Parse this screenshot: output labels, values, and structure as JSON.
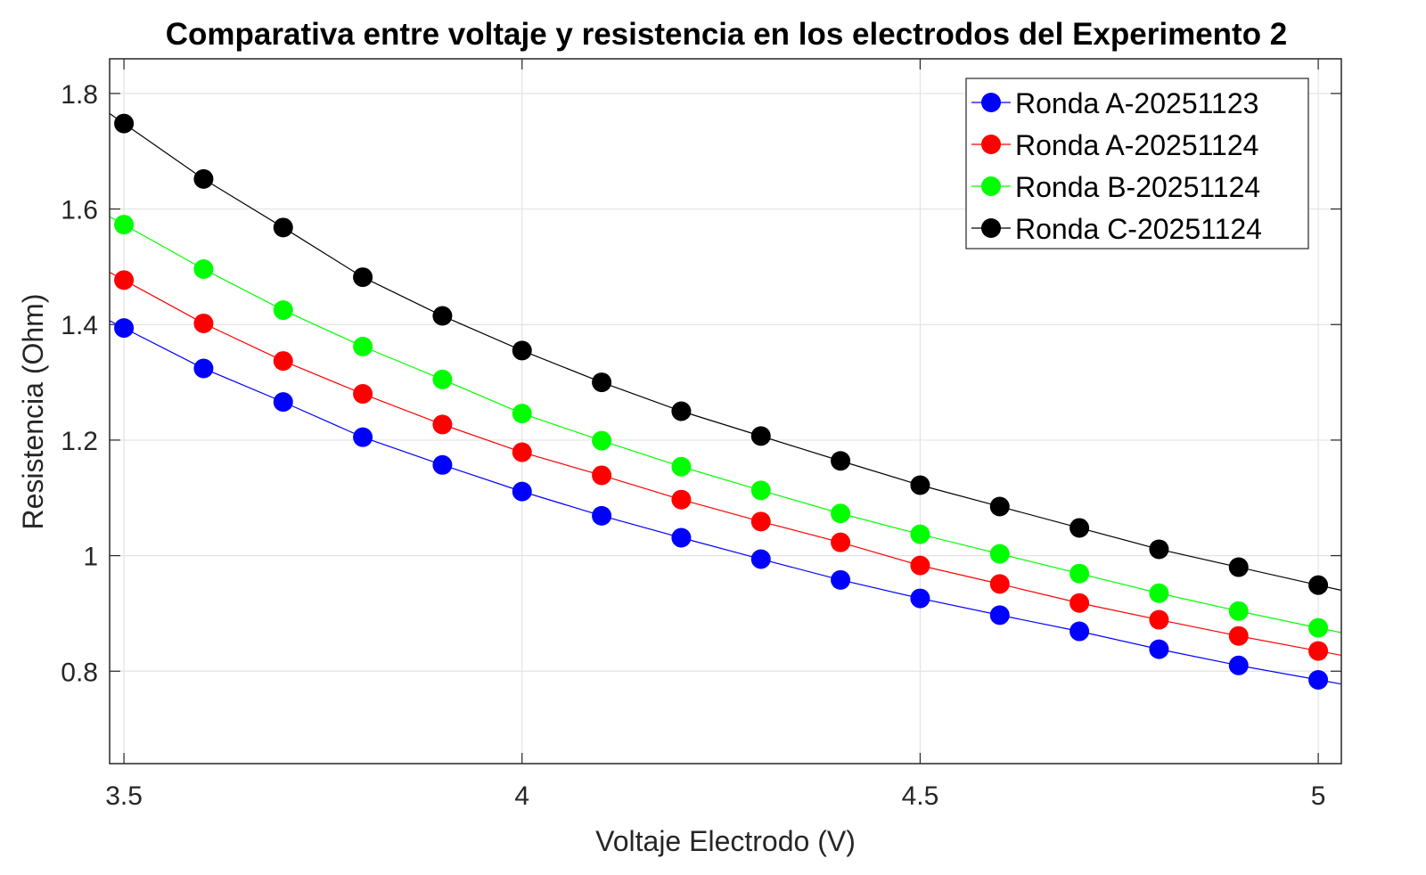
{
  "chart_data": {
    "type": "line",
    "title": "Comparativa entre voltaje y resistencia en los electrodos del Experimento 2",
    "xlabel": "Voltaje Electrodo (V)",
    "ylabel": "Resistencia (Ohm)",
    "xlim": [
      3.482,
      5.029
    ],
    "ylim": [
      0.64,
      1.86
    ],
    "xticks": [
      3.5,
      4,
      4.5,
      5
    ],
    "xtick_labels": [
      "3.5",
      "4",
      "4.5",
      "5"
    ],
    "yticks": [
      0.8,
      1.0,
      1.2,
      1.4,
      1.6,
      1.8
    ],
    "ytick_labels": [
      "0.8",
      "1",
      "1.2",
      "1.4",
      "1.6",
      "1.8"
    ],
    "grid": true,
    "legend_position": "top-right",
    "x": [
      3.5,
      3.6,
      3.7,
      3.8,
      3.9,
      4.0,
      4.1,
      4.2,
      4.3,
      4.4,
      4.5,
      4.6,
      4.7,
      4.8,
      4.9,
      5.0
    ],
    "series": [
      {
        "name": "Ronda A-20251123",
        "color": "#0000ff",
        "values": [
          1.394,
          1.324,
          1.266,
          1.205,
          1.157,
          1.111,
          1.069,
          1.031,
          0.994,
          0.958,
          0.926,
          0.897,
          0.869,
          0.838,
          0.81,
          0.785
        ]
      },
      {
        "name": "Ronda A-20251124",
        "color": "#ff0000",
        "values": [
          1.477,
          1.402,
          1.337,
          1.28,
          1.227,
          1.179,
          1.139,
          1.097,
          1.059,
          1.023,
          0.983,
          0.951,
          0.918,
          0.889,
          0.861,
          0.835
        ]
      },
      {
        "name": "Ronda B-20251124",
        "color": "#00ff00",
        "values": [
          1.573,
          1.496,
          1.425,
          1.362,
          1.305,
          1.246,
          1.199,
          1.154,
          1.113,
          1.073,
          1.037,
          1.003,
          0.969,
          0.935,
          0.904,
          0.875
        ]
      },
      {
        "name": "Ronda C-20251124",
        "color": "#000000",
        "values": [
          1.748,
          1.652,
          1.568,
          1.482,
          1.415,
          1.355,
          1.3,
          1.25,
          1.207,
          1.164,
          1.122,
          1.085,
          1.048,
          1.011,
          0.98,
          0.949
        ]
      }
    ]
  }
}
